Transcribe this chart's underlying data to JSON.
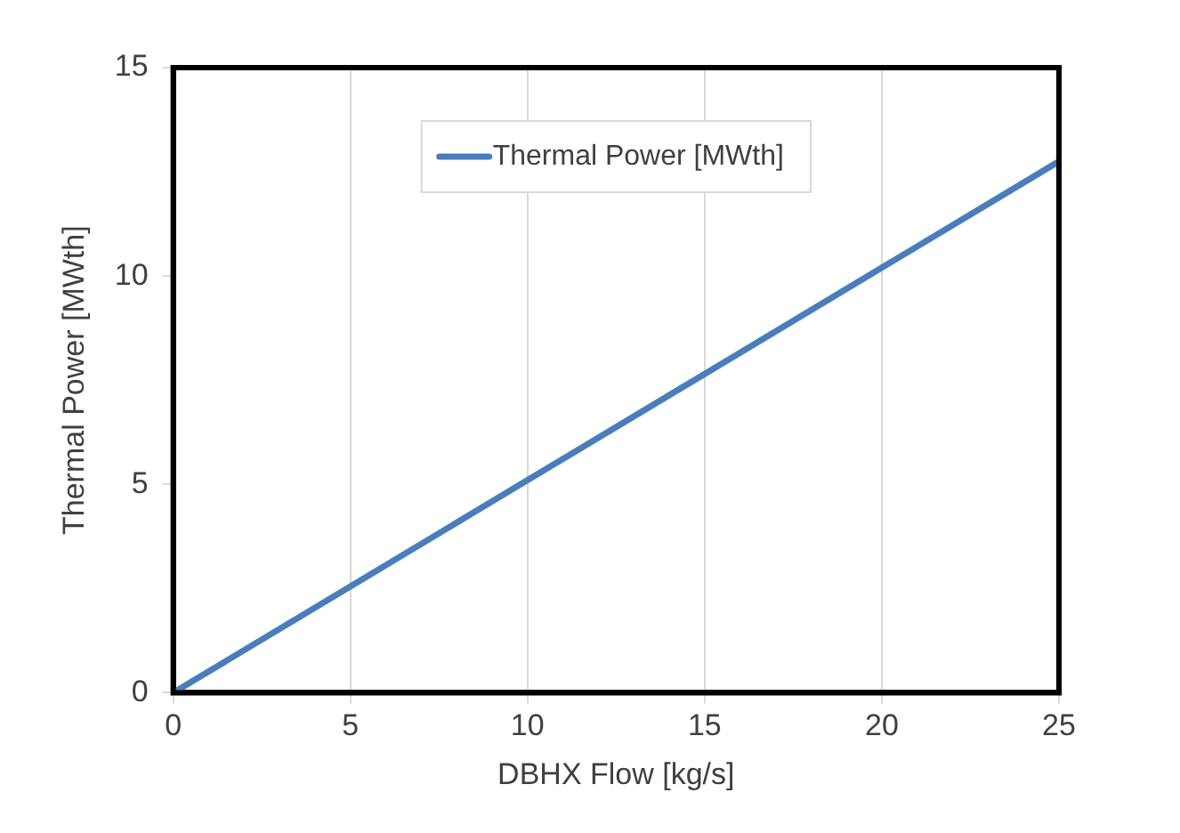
{
  "chart_data": {
    "type": "line",
    "xlabel": "DBHX Flow [kg/s]",
    "ylabel": "Thermal Power [MWth]",
    "x": [
      0,
      5,
      10,
      15,
      20,
      25
    ],
    "series": [
      {
        "name": "Thermal Power [MWth]",
        "color": "#4a7ebb",
        "values": [
          0,
          2.55,
          5.1,
          7.65,
          10.2,
          12.75
        ]
      }
    ],
    "xlim": [
      0,
      25
    ],
    "xticks": [
      0,
      5,
      10,
      15,
      20,
      25
    ],
    "ylim": [
      0,
      15
    ],
    "yticks": [
      0,
      5,
      10,
      15
    ],
    "grid": "x",
    "legend": "top",
    "marker": "none",
    "line_style": "solid"
  }
}
